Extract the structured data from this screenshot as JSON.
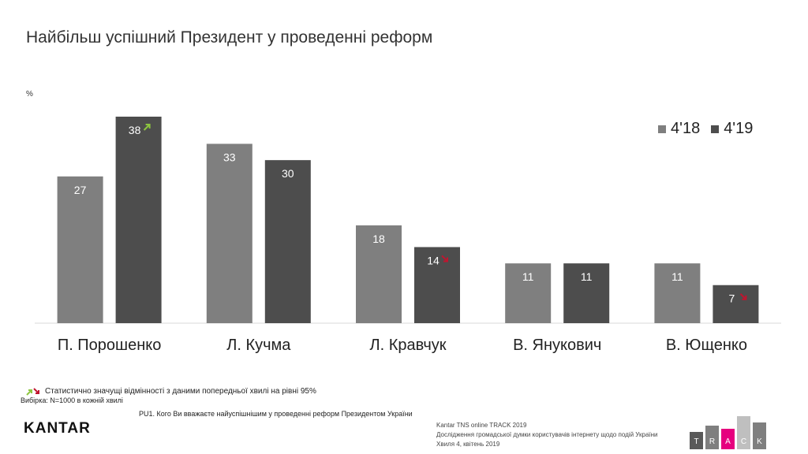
{
  "title": "Найбільш успішний Президент у проведенні реформ",
  "unit_label": "%",
  "legend": [
    {
      "label": "4'18",
      "color": "#7f7f7f"
    },
    {
      "label": "4'19",
      "color": "#4d4d4d"
    }
  ],
  "footnote": "Статистично  значущі відмінності з даними попередньої  хвилі на рівні 95%",
  "sample": "Вибірка: N=1000 в кожній хвилі",
  "question": "PU1. Кого Ви вважаєте найуспішнішим у проведенні реформ Президентом України",
  "logo": "KANTAR",
  "source": {
    "line1": "Kantar TNS online TRACK 2019",
    "line2": "Дослідження громадської думки користувачів інтернету щодо подій України",
    "line3": "Хвиля 4, квітень 2019"
  },
  "track_letters": [
    "T",
    "R",
    "A",
    "C",
    "K"
  ],
  "colors": {
    "up_arrow": "#8dc63f",
    "down_arrow": "#c0152f",
    "track_pink": "#e6007e"
  },
  "chart_data": {
    "type": "bar",
    "categories": [
      "П. Порошенко",
      "Л. Кучма",
      "Л. Кравчук",
      "В. Янукович",
      "В. Ющенко"
    ],
    "series": [
      {
        "name": "4'18",
        "values": [
          27,
          33,
          18,
          11,
          11
        ],
        "color": "#7f7f7f"
      },
      {
        "name": "4'19",
        "values": [
          38,
          30,
          14,
          11,
          7
        ],
        "color": "#4d4d4d"
      }
    ],
    "significance_4_19": [
      "up",
      "none",
      "down",
      "none",
      "down"
    ],
    "ylabel": "%",
    "ylim": [
      0,
      38
    ],
    "grid": false,
    "legend_position": "top-right"
  }
}
